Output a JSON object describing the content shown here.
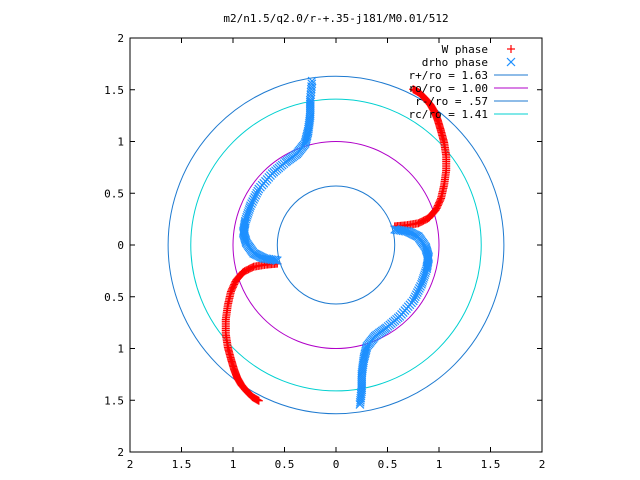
{
  "chart_data": {
    "type": "scatter",
    "title": "m2/n1.5/q2.0/r-+.35-j181/M0.01/512",
    "xlabel": "",
    "ylabel": "",
    "xlim": [
      -2,
      2
    ],
    "ylim": [
      -2,
      2
    ],
    "x_tick_labels": [
      "2",
      "1.5",
      "1",
      "0.5",
      "0",
      "0.5",
      "1",
      "1.5",
      "2"
    ],
    "y_tick_labels": [
      "2",
      "1.5",
      "1",
      "0.5",
      "0",
      "0.5",
      "1",
      "1.5",
      "2"
    ],
    "grid": false,
    "legend_position": "top-right",
    "series": [
      {
        "name": "W phase",
        "marker": "plus",
        "color": "#ff0000"
      },
      {
        "name": "drho phase",
        "marker": "cross",
        "color": "#1e90ff"
      },
      {
        "name": "r+/ro = 1.63",
        "kind": "circle",
        "radius": 1.63,
        "color": "#1e7ad0"
      },
      {
        "name": "ro/ro = 1.00",
        "kind": "circle",
        "radius": 1.0,
        "color": "#b000c8"
      },
      {
        "name": "r-/ro = .57",
        "kind": "circle",
        "radius": 0.57,
        "color": "#1e7ad0"
      },
      {
        "name": "rc/ro = 1.41",
        "kind": "circle",
        "radius": 1.41,
        "color": "#00d0d0"
      }
    ],
    "w_phase_points": [
      [
        0.57,
        0.18
      ],
      [
        0.68,
        0.19
      ],
      [
        0.8,
        0.21
      ],
      [
        0.9,
        0.26
      ],
      [
        0.97,
        0.34
      ],
      [
        1.02,
        0.45
      ],
      [
        1.05,
        0.58
      ],
      [
        1.07,
        0.72
      ],
      [
        1.07,
        0.86
      ],
      [
        1.05,
        0.99
      ],
      [
        1.02,
        1.1
      ],
      [
        0.99,
        1.2
      ],
      [
        0.96,
        1.28
      ],
      [
        0.92,
        1.35
      ],
      [
        0.87,
        1.41
      ],
      [
        0.81,
        1.47
      ],
      [
        0.74,
        1.51
      ],
      [
        -0.57,
        -0.18
      ],
      [
        -0.68,
        -0.19
      ],
      [
        -0.8,
        -0.21
      ],
      [
        -0.9,
        -0.26
      ],
      [
        -0.97,
        -0.34
      ],
      [
        -1.02,
        -0.45
      ],
      [
        -1.05,
        -0.58
      ],
      [
        -1.07,
        -0.72
      ],
      [
        -1.07,
        -0.86
      ],
      [
        -1.05,
        -0.99
      ],
      [
        -1.02,
        -1.1
      ],
      [
        -0.99,
        -1.2
      ],
      [
        -0.96,
        -1.28
      ],
      [
        -0.92,
        -1.35
      ],
      [
        -0.87,
        -1.41
      ],
      [
        -0.81,
        -1.47
      ],
      [
        -0.74,
        -1.51
      ]
    ],
    "drho_phase_points": [
      [
        0.57,
        0.15
      ],
      [
        0.7,
        0.13
      ],
      [
        0.8,
        0.08
      ],
      [
        0.87,
        -0.02
      ],
      [
        0.9,
        -0.12
      ],
      [
        0.88,
        -0.23
      ],
      [
        0.83,
        -0.38
      ],
      [
        0.75,
        -0.54
      ],
      [
        0.62,
        -0.69
      ],
      [
        0.49,
        -0.8
      ],
      [
        0.38,
        -0.88
      ],
      [
        0.3,
        -0.98
      ],
      [
        0.27,
        -1.1
      ],
      [
        0.25,
        -1.25
      ],
      [
        0.25,
        -1.4
      ],
      [
        0.23,
        -1.56
      ],
      [
        -0.57,
        -0.15
      ],
      [
        -0.7,
        -0.13
      ],
      [
        -0.8,
        -0.08
      ],
      [
        -0.87,
        0.02
      ],
      [
        -0.9,
        0.12
      ],
      [
        -0.88,
        0.23
      ],
      [
        -0.83,
        0.38
      ],
      [
        -0.75,
        0.54
      ],
      [
        -0.62,
        0.69
      ],
      [
        -0.49,
        0.8
      ],
      [
        -0.38,
        0.88
      ],
      [
        -0.3,
        0.98
      ],
      [
        -0.27,
        1.1
      ],
      [
        -0.25,
        1.25
      ],
      [
        -0.25,
        1.4
      ],
      [
        -0.23,
        1.61
      ]
    ]
  }
}
